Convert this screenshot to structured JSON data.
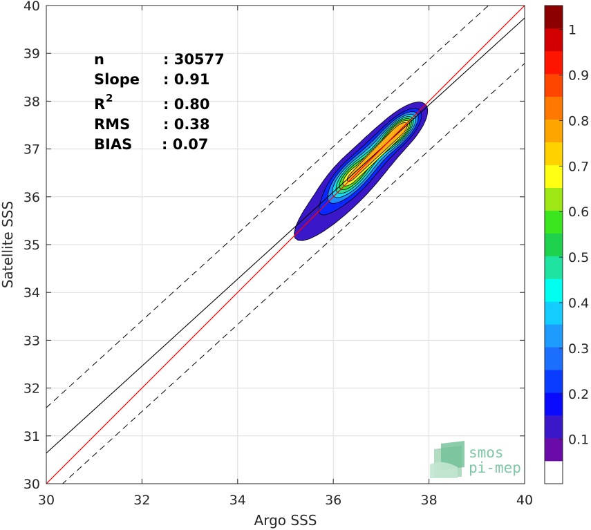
{
  "chart_data": {
    "type": "contour",
    "xlabel": "Argo SSS",
    "ylabel": "Satellite SSS",
    "xlim": [
      30,
      40
    ],
    "ylim": [
      30,
      40
    ],
    "xticks": [
      "30",
      "32",
      "34",
      "36",
      "38",
      "40"
    ],
    "yticks": [
      "30",
      "31",
      "32",
      "33",
      "34",
      "35",
      "36",
      "37",
      "38",
      "39",
      "40"
    ],
    "grid": true,
    "stats": [
      {
        "label": "n",
        "value": ": 30577"
      },
      {
        "label": "Slope",
        "value": ": 0.91"
      },
      {
        "label": "R",
        "sup": "2",
        "value": ": 0.80"
      },
      {
        "label": "RMS",
        "value": ": 0.38"
      },
      {
        "label": "BIAS",
        "value": ": 0.07"
      }
    ],
    "lines": {
      "identity": {
        "color": "#ff0000",
        "slope": 1.0,
        "intercept": 0.0
      },
      "regression": {
        "color": "#000000",
        "slope": 0.91,
        "intercept": 3.34
      },
      "bounds": {
        "color": "#000000",
        "dash": true,
        "offset": 0.95
      }
    },
    "density": {
      "peak": {
        "x": 37.4,
        "y": 37.4
      },
      "secondary": {
        "x": 36.35,
        "y": 36.4
      },
      "levels": [
        {
          "level": 0.05,
          "color": "#3a17c8"
        },
        {
          "level": 0.15,
          "color": "#0a28ff"
        },
        {
          "level": 0.25,
          "color": "#1c8cff"
        },
        {
          "level": 0.35,
          "color": "#16d9f0"
        },
        {
          "level": 0.45,
          "color": "#1fe39a"
        },
        {
          "level": 0.55,
          "color": "#52e027"
        },
        {
          "level": 0.65,
          "color": "#f2f227"
        },
        {
          "level": 0.75,
          "color": "#ffb014"
        },
        {
          "level": 0.85,
          "color": "#ff3a00"
        },
        {
          "level": 0.95,
          "color": "#c30000"
        }
      ]
    },
    "colorbar": {
      "ticks": [
        "0.1",
        "0.2",
        "0.3",
        "0.4",
        "0.5",
        "0.6",
        "0.7",
        "0.8",
        "0.9",
        "1"
      ],
      "colors": [
        "#ffffff",
        "#6a0aa8",
        "#3a17c8",
        "#0a0aff",
        "#0a3cff",
        "#1c6eff",
        "#1e9bff",
        "#14cdff",
        "#00fff0",
        "#1fe3a0",
        "#1ed24e",
        "#3ce61e",
        "#9ee614",
        "#ffff14",
        "#ffd200",
        "#ffa500",
        "#ff7800",
        "#ff4600",
        "#ff1400",
        "#d20000",
        "#8c0000"
      ]
    },
    "logo": {
      "line1": "smos",
      "line2": "pi-mep"
    }
  }
}
